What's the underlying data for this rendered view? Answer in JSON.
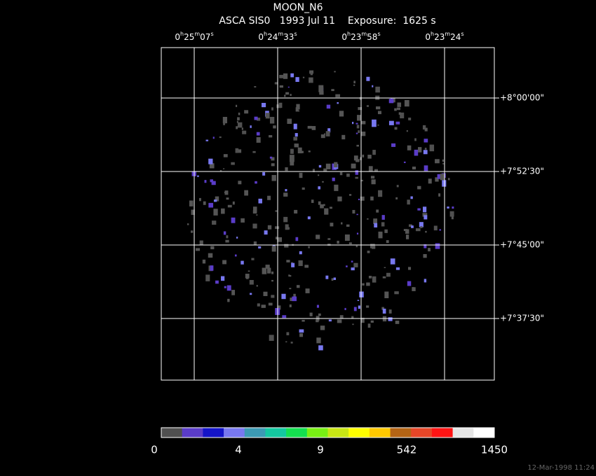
{
  "header": {
    "title": "MOON_N6",
    "subtitle": "ASCA SIS0   1993 Jul 11    Exposure:  1625 s"
  },
  "ra_labels": [
    [
      "0",
      "h",
      "25",
      "m",
      "07",
      "s"
    ],
    [
      "0",
      "h",
      "24",
      "m",
      "33",
      "s"
    ],
    [
      "0",
      "h",
      "23",
      "m",
      "58",
      "s"
    ],
    [
      "0",
      "h",
      "23",
      "m",
      "24",
      "s"
    ]
  ],
  "dec_labels": [
    "+8°00'00\"",
    "+7°52'30\"",
    "+7°45'00\"",
    "+7°37'30\""
  ],
  "colorbar": {
    "colors": [
      "#505050",
      "#5a3cc8",
      "#1414c8",
      "#7878f0",
      "#3c9ab4",
      "#14c8a0",
      "#14e050",
      "#78f014",
      "#c8e614",
      "#ffff00",
      "#ffc800",
      "#b46414",
      "#e64628",
      "#ff1414",
      "#e6e6e6",
      "#ffffff"
    ],
    "labels": [
      "0",
      "4",
      "9",
      "542",
      "1450"
    ]
  },
  "timestamp": "12-Mar-1998 11:24"
}
